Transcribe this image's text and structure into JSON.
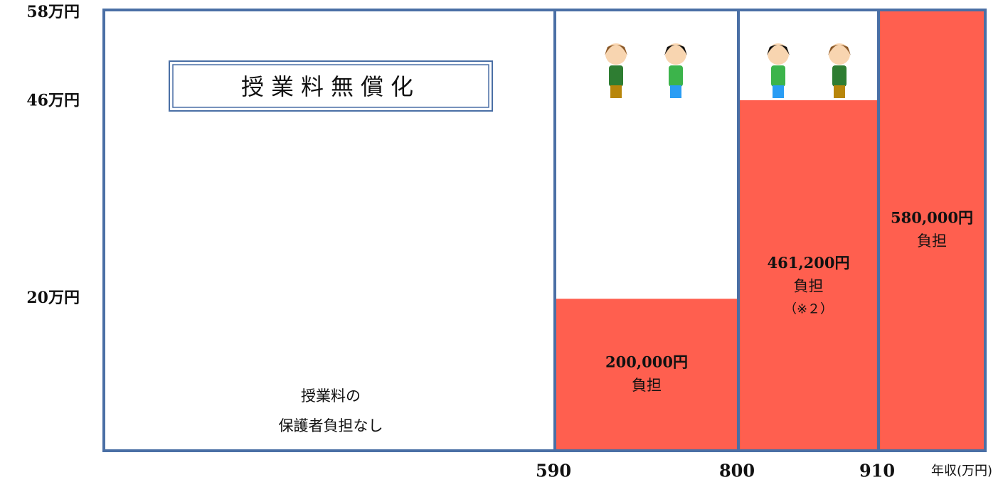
{
  "chart_data": {
    "type": "bar",
    "title": "授業料無償化",
    "free_note": [
      "授業料の",
      "保護者負担なし"
    ],
    "categories": [
      null,
      null,
      null,
      null
    ],
    "x_boundaries": [
      590,
      800,
      910
    ],
    "xlabel": "年収(万円)",
    "values": [
      0,
      20,
      46.12,
      58
    ],
    "value_labels": [
      null,
      "200,000円",
      "461,200円",
      "580,000円"
    ],
    "notes": [
      null,
      "負担",
      "負担",
      "負担"
    ],
    "notes2": [
      null,
      null,
      "（※２）",
      null
    ],
    "color": "#ff5f4f",
    "ylim": [
      0,
      58
    ],
    "yticks": [
      {
        "value": 20,
        "label": "20万円"
      },
      {
        "value": 46,
        "label": "46万円"
      },
      {
        "value": 58,
        "label": "58万円"
      }
    ]
  }
}
